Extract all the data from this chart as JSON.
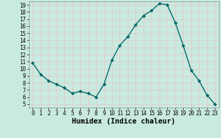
{
  "x": [
    0,
    1,
    2,
    3,
    4,
    5,
    6,
    7,
    8,
    9,
    10,
    11,
    12,
    13,
    14,
    15,
    16,
    17,
    18,
    19,
    20,
    21,
    22,
    23
  ],
  "y": [
    10.8,
    9.2,
    8.3,
    7.8,
    7.3,
    6.5,
    6.8,
    6.5,
    6.0,
    7.8,
    11.2,
    13.3,
    14.5,
    16.2,
    17.5,
    18.2,
    19.2,
    19.0,
    16.5,
    13.3,
    9.8,
    8.3,
    6.3,
    5.0
  ],
  "line_color": "#006666",
  "marker": "D",
  "marker_size": 2.2,
  "line_width": 1.0,
  "xlabel": "Humidex (Indice chaleur)",
  "xlabel_fontsize": 7.5,
  "background_color": "#c8eae0",
  "grid_color": "#e8c8c8",
  "xlim": [
    -0.5,
    23.5
  ],
  "ylim": [
    4.5,
    19.5
  ],
  "yticks": [
    5,
    6,
    7,
    8,
    9,
    10,
    11,
    12,
    13,
    14,
    15,
    16,
    17,
    18,
    19
  ],
  "xticks": [
    0,
    1,
    2,
    3,
    4,
    5,
    6,
    7,
    8,
    9,
    10,
    11,
    12,
    13,
    14,
    15,
    16,
    17,
    18,
    19,
    20,
    21,
    22,
    23
  ],
  "tick_fontsize": 5.5
}
